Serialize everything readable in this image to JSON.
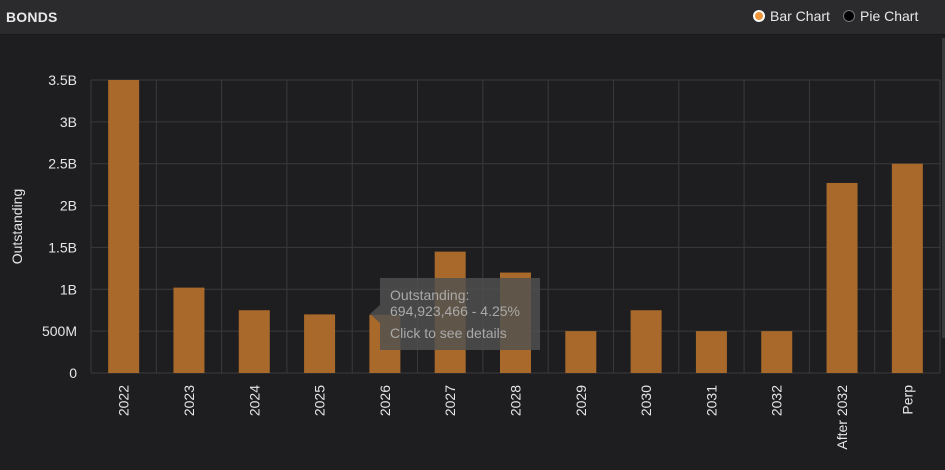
{
  "header": {
    "title": "BONDS",
    "bar_chart_label": "Bar Chart",
    "pie_chart_label": "Pie Chart"
  },
  "colors": {
    "bar": "#a8692a",
    "accent": "#f0953a",
    "grid": "#3a3a3d",
    "text": "#e6e6e6"
  },
  "tooltip": {
    "line1": "Outstanding:",
    "line2": "694,923,466 - 4.25%",
    "line3": "Click to see details"
  },
  "chart_data": {
    "type": "bar",
    "ylabel": "Outstanding",
    "categories": [
      "2022",
      "2023",
      "2024",
      "2025",
      "2026",
      "2027",
      "2028",
      "2029",
      "2030",
      "2031",
      "2032",
      "After 2032",
      "Perp"
    ],
    "values": [
      3500000000,
      1020000000,
      750000000,
      700000000,
      694923466,
      1450000000,
      1200000000,
      500000000,
      750000000,
      500000000,
      500000000,
      2270000000,
      2500000000
    ],
    "ylim": [
      0,
      3500000000
    ],
    "yticks": [
      0,
      500000000,
      1000000000,
      1500000000,
      2000000000,
      2500000000,
      3000000000,
      3500000000
    ],
    "ytick_labels": [
      "0",
      "500M",
      "1B",
      "1.5B",
      "2B",
      "2.5B",
      "3B",
      "3.5B"
    ],
    "grid": true
  }
}
